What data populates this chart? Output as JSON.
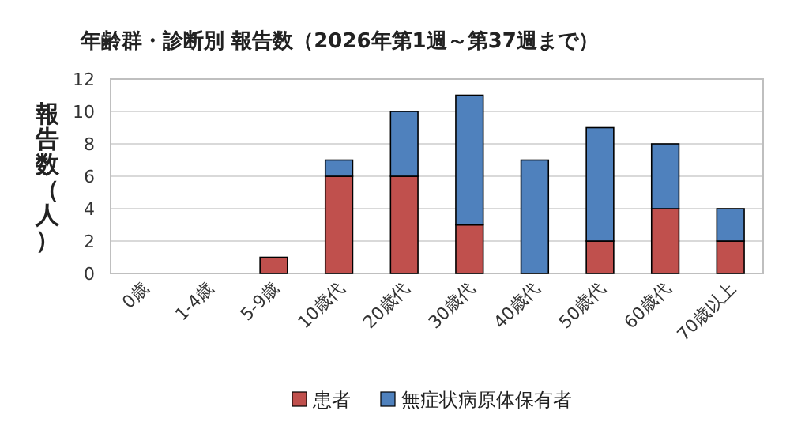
{
  "chart_data": {
    "type": "bar",
    "stacked": true,
    "title": "年齢群・診断別  報告数（2026年第1週～第37週まで）",
    "ylabel": "報告数（人）",
    "categories": [
      "0歳",
      "1-4歳",
      "5-9歳",
      "10歳代",
      "20歳代",
      "30歳代",
      "40歳代",
      "50歳代",
      "60歳代",
      "70歳以上"
    ],
    "series": [
      {
        "name": "患者",
        "color": "#c0504d",
        "values": [
          0,
          0,
          1,
          6,
          6,
          3,
          0,
          2,
          4,
          2
        ]
      },
      {
        "name": "無症状病原体保有者",
        "color": "#4f81bd",
        "values": [
          0,
          0,
          0,
          1,
          4,
          8,
          7,
          7,
          4,
          2
        ]
      }
    ],
    "ylim": [
      0,
      12
    ],
    "yticks": [
      0,
      2,
      4,
      6,
      8,
      10,
      12
    ],
    "grid": "y",
    "legend": "bottom"
  }
}
